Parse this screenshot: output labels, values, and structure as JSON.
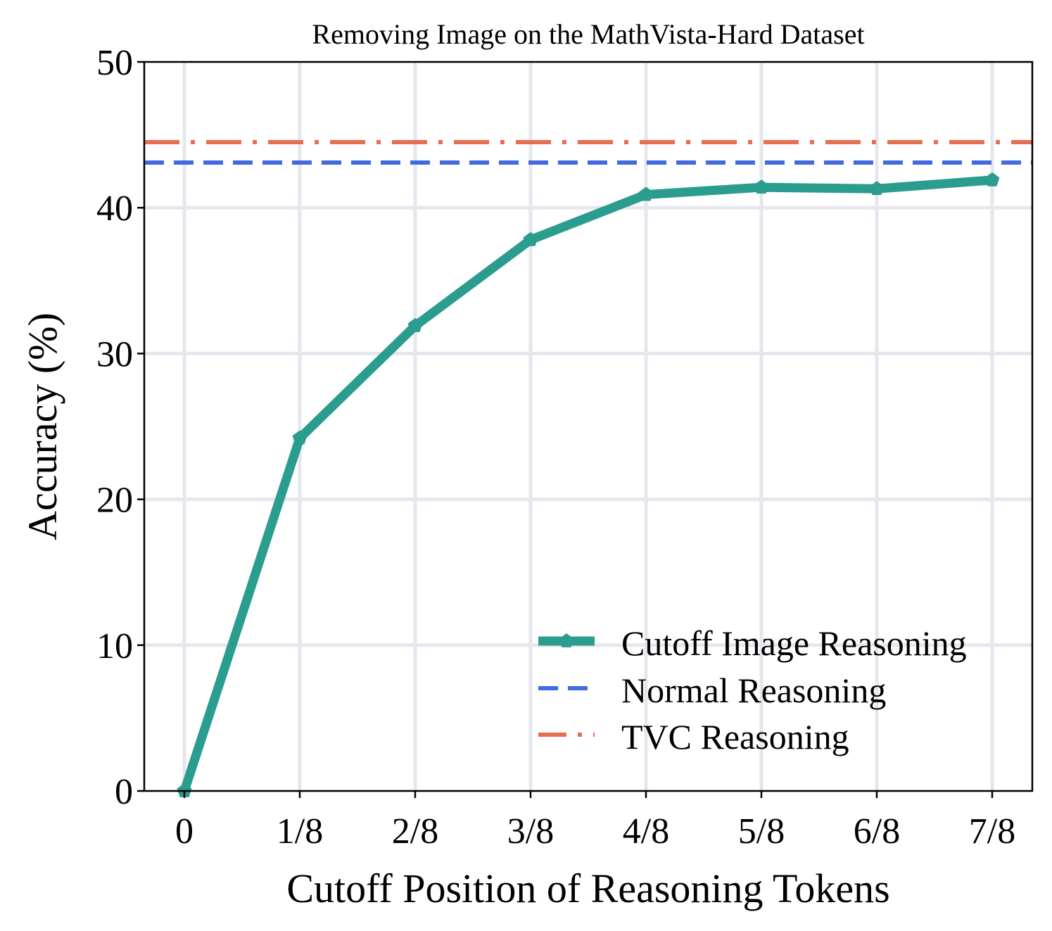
{
  "chart_data": {
    "type": "line",
    "title": "Removing Image on the MathVista-Hard Dataset",
    "xlabel": "Cutoff Position of Reasoning Tokens",
    "ylabel": "Accuracy (%)",
    "categories": [
      "0",
      "1/8",
      "2/8",
      "3/8",
      "4/8",
      "5/8",
      "6/8",
      "7/8"
    ],
    "ylim": [
      0,
      50
    ],
    "yticks": [
      "0",
      "10",
      "20",
      "30",
      "40",
      "50"
    ],
    "grid": true,
    "legend_position": "lower-right",
    "series": [
      {
        "name": "Cutoff Image Reasoning",
        "style": "solid-with-markers",
        "color": "#2a9d8f",
        "values": [
          0,
          24.2,
          31.9,
          37.8,
          40.9,
          41.4,
          41.3,
          41.9
        ]
      },
      {
        "name": "Normal Reasoning",
        "style": "dashed-horizontal",
        "color": "#4169e1",
        "value": 43.1
      },
      {
        "name": "TVC Reasoning",
        "style": "dashdot-horizontal",
        "color": "#e76f51",
        "value": 44.5
      }
    ]
  }
}
